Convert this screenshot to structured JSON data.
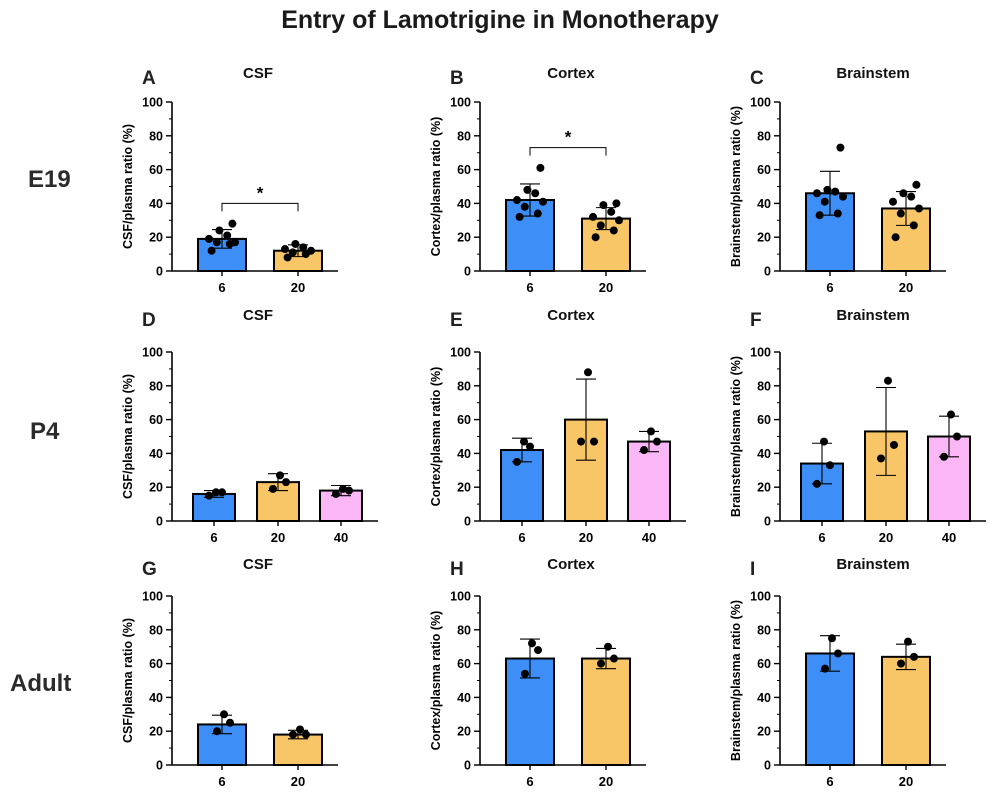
{
  "title": "Entry of Lamotrigine in Monotherapy",
  "rows": [
    "E19",
    "P4",
    "Adult"
  ],
  "colors": {
    "6": "#3d8ef7",
    "20": "#f8c667",
    "40": "#fbb6f6"
  },
  "chart_data": [
    {
      "type": "bar",
      "panel": "A",
      "title": "CSF",
      "ylabel": "CSF/plasma ratio (%)",
      "ylim": [
        0,
        100
      ],
      "yticks": [
        0,
        20,
        40,
        60,
        80,
        100
      ],
      "categories": [
        "6",
        "20"
      ],
      "values": [
        19,
        12
      ],
      "sd": [
        5.5,
        3.5
      ],
      "points": [
        [
          12,
          16,
          17,
          17,
          19,
          21,
          24,
          28
        ],
        [
          8,
          10,
          11,
          12,
          13,
          14,
          16
        ]
      ],
      "significance": {
        "from": 0,
        "to": 1,
        "y": 40,
        "label": "*"
      }
    },
    {
      "type": "bar",
      "panel": "B",
      "title": "Cortex",
      "ylabel": "Cortex/plasma ratio (%)",
      "ylim": [
        0,
        100
      ],
      "yticks": [
        0,
        20,
        40,
        60,
        80,
        100
      ],
      "categories": [
        "6",
        "20"
      ],
      "values": [
        42,
        31
      ],
      "sd": [
        9.5,
        6.5
      ],
      "points": [
        [
          32,
          34,
          38,
          41,
          42,
          46,
          48,
          61
        ],
        [
          20,
          24,
          27,
          30,
          32,
          35,
          39,
          40
        ]
      ],
      "significance": {
        "from": 0,
        "to": 1,
        "y": 73,
        "label": "*"
      }
    },
    {
      "type": "bar",
      "panel": "C",
      "title": "Brainstem",
      "ylabel": "Brainstem/plasma ratio (%)",
      "ylim": [
        0,
        100
      ],
      "yticks": [
        0,
        20,
        40,
        60,
        80,
        100
      ],
      "categories": [
        "6",
        "20"
      ],
      "values": [
        46,
        37
      ],
      "sd": [
        13,
        10
      ],
      "points": [
        [
          33,
          34,
          41,
          44,
          46,
          47,
          48,
          73
        ],
        [
          20,
          27,
          34,
          37,
          41,
          44,
          46,
          51
        ]
      ]
    },
    {
      "type": "bar",
      "panel": "D",
      "title": "CSF",
      "ylabel": "CSF/plasma ratio (%)",
      "ylim": [
        0,
        100
      ],
      "yticks": [
        0,
        20,
        40,
        60,
        80,
        100
      ],
      "categories": [
        "6",
        "20",
        "40"
      ],
      "values": [
        16,
        23,
        18
      ],
      "sd": [
        2,
        5,
        3
      ],
      "points": [
        [
          15,
          17,
          17
        ],
        [
          19,
          23,
          27
        ],
        [
          16,
          18,
          19
        ]
      ]
    },
    {
      "type": "bar",
      "panel": "E",
      "title": "Cortex",
      "ylabel": "Cortex/plasma ratio (%)",
      "ylim": [
        0,
        100
      ],
      "yticks": [
        0,
        20,
        40,
        60,
        80,
        100
      ],
      "categories": [
        "6",
        "20",
        "40"
      ],
      "values": [
        42,
        60,
        47
      ],
      "sd": [
        7,
        24,
        6
      ],
      "points": [
        [
          35,
          44,
          47
        ],
        [
          47,
          47,
          88
        ],
        [
          42,
          47,
          53
        ]
      ]
    },
    {
      "type": "bar",
      "panel": "F",
      "title": "Brainstem",
      "ylabel": "Brainstem/plasma ratio (%)",
      "ylim": [
        0,
        100
      ],
      "yticks": [
        0,
        20,
        40,
        60,
        80,
        100
      ],
      "categories": [
        "6",
        "20",
        "40"
      ],
      "values": [
        34,
        53,
        50
      ],
      "sd": [
        12,
        26,
        12
      ],
      "points": [
        [
          22,
          33,
          47
        ],
        [
          37,
          45,
          83
        ],
        [
          38,
          50,
          63
        ]
      ]
    },
    {
      "type": "bar",
      "panel": "G",
      "title": "CSF",
      "ylabel": "CSF/plasma ratio (%)",
      "ylim": [
        0,
        100
      ],
      "yticks": [
        0,
        20,
        40,
        60,
        80,
        100
      ],
      "categories": [
        "6",
        "20"
      ],
      "values": [
        24,
        18
      ],
      "sd": [
        5.5,
        2.5
      ],
      "points": [
        [
          20,
          25,
          30
        ],
        [
          18,
          18,
          21
        ]
      ]
    },
    {
      "type": "bar",
      "panel": "H",
      "title": "Cortex",
      "ylabel": "Cortex/plasma ratio (%)",
      "ylim": [
        0,
        100
      ],
      "yticks": [
        0,
        20,
        40,
        60,
        80,
        100
      ],
      "categories": [
        "6",
        "20"
      ],
      "values": [
        63,
        63
      ],
      "sd": [
        11.5,
        6
      ],
      "points": [
        [
          54,
          68,
          72
        ],
        [
          60,
          63,
          70
        ]
      ]
    },
    {
      "type": "bar",
      "panel": "I",
      "title": "Brainstem",
      "ylabel": "Brainstem/plasma ratio (%)",
      "ylim": [
        0,
        100
      ],
      "yticks": [
        0,
        20,
        40,
        60,
        80,
        100
      ],
      "categories": [
        "6",
        "20"
      ],
      "values": [
        66,
        64
      ],
      "sd": [
        10.5,
        7.5
      ],
      "points": [
        [
          57,
          66,
          75
        ],
        [
          60,
          64,
          73
        ]
      ]
    }
  ]
}
